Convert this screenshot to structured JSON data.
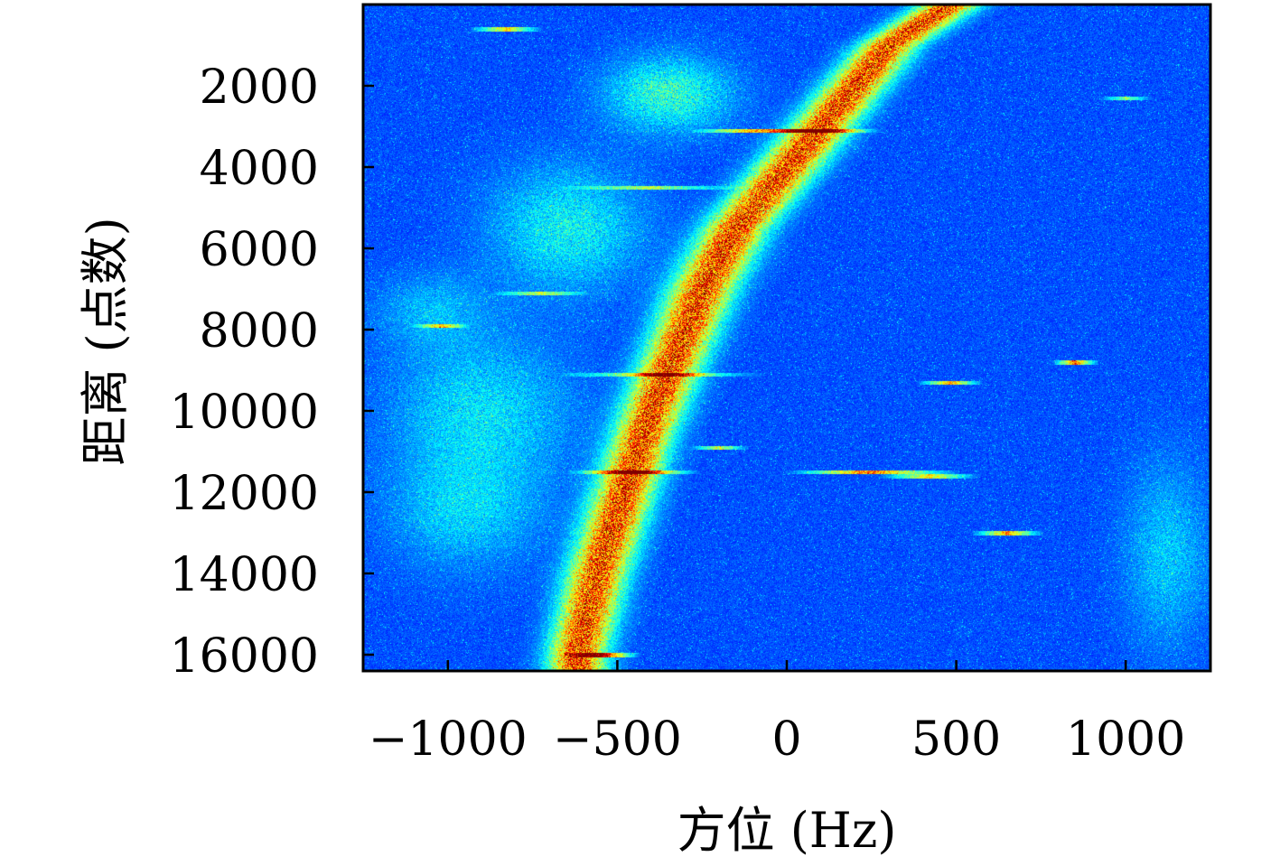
{
  "chart_data": {
    "type": "heatmap",
    "title": "",
    "xlabel": "方位 (Hz)",
    "ylabel": "距离 (点数)",
    "xlim": [
      -1250,
      1250
    ],
    "ylim": [
      16400,
      0
    ],
    "y_inverted": true,
    "grid": false,
    "colormap": "jet",
    "x_ticks": [
      -1000,
      -500,
      0,
      500,
      1000
    ],
    "x_tick_labels": [
      "−1000",
      "−500",
      "0",
      "500",
      "1000"
    ],
    "y_ticks": [
      2000,
      4000,
      6000,
      8000,
      10000,
      12000,
      14000,
      16000
    ],
    "y_tick_labels": [
      "2000",
      "4000",
      "6000",
      "8000",
      "10000",
      "12000",
      "14000",
      "16000"
    ],
    "dominant_curve": {
      "name": "",
      "x": [
        480,
        300,
        150,
        0,
        -150,
        -250,
        -350,
        -420,
        -480,
        -560,
        -620
      ],
      "y": [
        0,
        1000,
        2500,
        4000,
        5500,
        7000,
        9000,
        10500,
        12000,
        14000,
        16000
      ],
      "half_width": [
        110,
        110,
        115,
        120,
        120,
        120,
        115,
        110,
        110,
        110,
        105
      ]
    },
    "faint_regions": [
      {
        "x": -350,
        "y": 2200,
        "sx": 180,
        "sy": 900,
        "strength": 0.45
      },
      {
        "x": -650,
        "y": 5500,
        "sx": 220,
        "sy": 1500,
        "strength": 0.35
      },
      {
        "x": -900,
        "y": 10000,
        "sx": 260,
        "sy": 1800,
        "strength": 0.3
      },
      {
        "x": -950,
        "y": 12500,
        "sx": 220,
        "sy": 1400,
        "strength": 0.25
      },
      {
        "x": 1120,
        "y": 13500,
        "sx": 120,
        "sy": 2200,
        "strength": 0.25
      },
      {
        "x": -1050,
        "y": 7500,
        "sx": 160,
        "sy": 900,
        "strength": 0.2
      }
    ],
    "streaks": [
      {
        "x": -830,
        "y": 600,
        "len": 110,
        "strength": 0.7
      },
      {
        "x": -1020,
        "y": 7900,
        "len": 90,
        "strength": 0.6
      },
      {
        "x": -730,
        "y": 7100,
        "len": 150,
        "strength": 0.5
      },
      {
        "x": -90,
        "y": 3100,
        "len": 200,
        "strength": 0.8
      },
      {
        "x": 100,
        "y": 3100,
        "len": 180,
        "strength": 0.8
      },
      {
        "x": 480,
        "y": 9300,
        "len": 100,
        "strength": 0.8
      },
      {
        "x": 850,
        "y": 8800,
        "len": 70,
        "strength": 0.9
      },
      {
        "x": 250,
        "y": 11500,
        "len": 260,
        "strength": 0.9
      },
      {
        "x": 420,
        "y": 11600,
        "len": 150,
        "strength": 0.7
      },
      {
        "x": 650,
        "y": 13000,
        "len": 110,
        "strength": 0.8
      },
      {
        "x": -200,
        "y": 10900,
        "len": 90,
        "strength": 0.6
      },
      {
        "x": -450,
        "y": 11500,
        "len": 200,
        "strength": 0.8
      },
      {
        "x": -550,
        "y": 16000,
        "len": 120,
        "strength": 0.9
      },
      {
        "x": 1000,
        "y": 2300,
        "len": 80,
        "strength": 0.5
      },
      {
        "x": -400,
        "y": 4500,
        "len": 280,
        "strength": 0.5
      },
      {
        "x": -380,
        "y": 9100,
        "len": 320,
        "strength": 0.55
      }
    ]
  }
}
